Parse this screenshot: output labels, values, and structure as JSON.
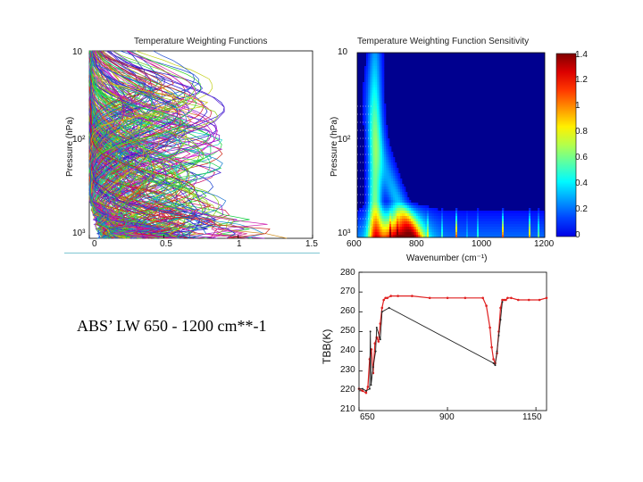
{
  "caption": "ABS’ LW 650 - 1200 cm**-1",
  "chart_data": [
    {
      "type": "line",
      "title": "Temperature Weighting Functions",
      "xlabel": "",
      "ylabel": "Pressure (hPa)",
      "x_ticks": [
        "0",
        "0.5",
        "1",
        "1.5"
      ],
      "y_ticks": [
        "10",
        "10²",
        "10³"
      ],
      "xlim": [
        0,
        1.5
      ],
      "ylim": [
        10,
        1000
      ],
      "y_scale": "log",
      "y_inverted": true,
      "grid": false,
      "series_count_approx": 300,
      "series": []
    },
    {
      "type": "heatmap",
      "title": "Temperature Weighting Function Sensitivity",
      "xlabel": "Wavenumber (cm⁻¹)",
      "ylabel": "Pressure (hPa)",
      "x_ticks": [
        "600",
        "800",
        "1000",
        "1200"
      ],
      "y_ticks": [
        "10",
        "10²",
        "10³"
      ],
      "y_scale": "log",
      "colorbar_ticks": [
        "1.4",
        "1.2",
        "1",
        "0.8",
        "0.6",
        "0.4",
        "0.2",
        "0"
      ],
      "colorbar_range": [
        0,
        1.4
      ],
      "colormap": "jet"
    },
    {
      "type": "line",
      "title": "",
      "xlabel": "",
      "ylabel": "TBB(K)",
      "x_ticks": [
        "650",
        "900",
        "1150"
      ],
      "y_ticks": [
        "280",
        "270",
        "260",
        "250",
        "240",
        "230",
        "220",
        "210"
      ],
      "xlim": [
        650,
        1180
      ],
      "ylim": [
        210,
        280
      ],
      "series": [
        {
          "color": "#e02020",
          "x": [
            650,
            660,
            670,
            675,
            680,
            685,
            690,
            695,
            700,
            705,
            710,
            715,
            720,
            725,
            730,
            740,
            760,
            800,
            850,
            900,
            950,
            1000,
            1010,
            1020,
            1025,
            1030,
            1035,
            1040,
            1045,
            1050,
            1055,
            1060,
            1065,
            1070,
            1080,
            1100,
            1130,
            1160,
            1180
          ],
          "y": [
            221,
            220,
            219,
            222,
            236,
            241,
            229,
            244,
            247,
            245,
            254,
            262,
            266,
            267,
            267,
            268,
            268,
            268,
            267,
            267,
            267,
            267,
            263,
            252,
            242,
            236,
            234,
            239,
            250,
            262,
            266,
            266,
            266,
            267,
            267,
            266,
            266,
            266,
            267
          ]
        },
        {
          "color": "#202020",
          "x": [
            650,
            660,
            670,
            680,
            682,
            684,
            690,
            697,
            700,
            710,
            715,
            735,
            1030,
            1035,
            1040,
            1045,
            1050,
            1055
          ],
          "y": [
            221,
            221,
            220,
            221,
            250,
            223,
            232,
            240,
            252,
            246,
            260,
            262,
            234,
            233,
            240,
            248,
            256,
            265
          ]
        }
      ]
    }
  ]
}
